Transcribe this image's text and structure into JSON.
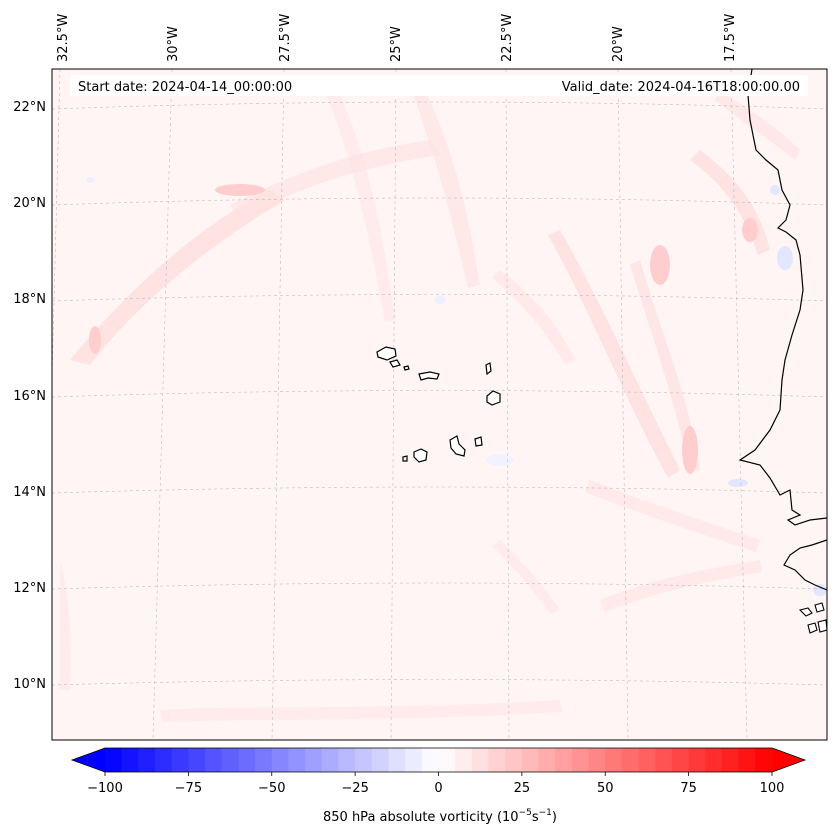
{
  "map": {
    "start_date": "Start date: 2024-04-14_00:00:00",
    "valid_date": "Valid_date: 2024-04-16T18:00:00.00",
    "lon_labels": [
      "32.5°W",
      "30°W",
      "27.5°W",
      "25°W",
      "22.5°W",
      "20°W",
      "17.5°W"
    ],
    "lat_labels": [
      "22°N",
      "20°N",
      "18°N",
      "16°N",
      "14°N",
      "12°N",
      "10°N"
    ],
    "features": [
      "Cape Verde islands",
      "West African coastline"
    ]
  },
  "colorbar": {
    "label_prefix": "850 hPa absolute vorticity (10",
    "label_exp1": "−5",
    "label_mid": "s",
    "label_exp2": "−1",
    "label_suffix": ")",
    "ticks": [
      "−100",
      "−75",
      "−50",
      "−25",
      "0",
      "25",
      "50",
      "75",
      "100"
    ],
    "min": -100,
    "max": 100,
    "step": 5,
    "colormap": "bwr",
    "colors": {
      "low": "#0000ff",
      "mid": "#ffffff",
      "high": "#ff0000"
    }
  }
}
